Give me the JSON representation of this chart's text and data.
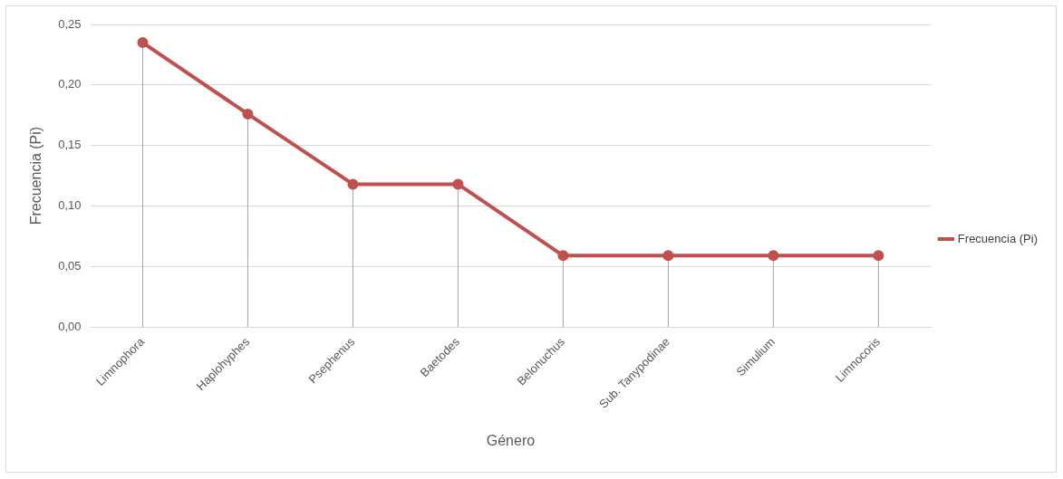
{
  "chart_data": {
    "type": "line",
    "xlabel": "Género",
    "ylabel": "Frecuencia (Pi)",
    "categories": [
      "Limnophora",
      "Haplohyphes",
      "Psephenus",
      "Baetodes",
      "Belonuchus",
      "Sub. Tanypodinae",
      "Simulium",
      "Limnocoris"
    ],
    "series": [
      {
        "name": "Frecuencia (Pi)",
        "color": "#c0504d",
        "values": [
          0.235,
          0.176,
          0.118,
          0.118,
          0.059,
          0.059,
          0.059,
          0.059
        ],
        "errors": [
          [
            0.235,
            0
          ],
          [
            0.176,
            0
          ],
          [
            0.118,
            0
          ],
          [
            0.118,
            0
          ],
          [
            0.059,
            0
          ],
          [
            0.059,
            0
          ],
          [
            0.059,
            0
          ],
          [
            0.059,
            0
          ]
        ]
      }
    ],
    "ylim": [
      0,
      0.25
    ],
    "yticks": [
      {
        "value": 0,
        "label": "0,00"
      },
      {
        "value": 0.05,
        "label": "0,05"
      },
      {
        "value": 0.1,
        "label": "0,10"
      },
      {
        "value": 0.15,
        "label": "0,15"
      },
      {
        "value": 0.2,
        "label": "0,20"
      },
      {
        "value": 0.25,
        "label": "0,25"
      }
    ],
    "grid": "y",
    "legend": "right",
    "marker": "circle",
    "line_style": "solid"
  }
}
